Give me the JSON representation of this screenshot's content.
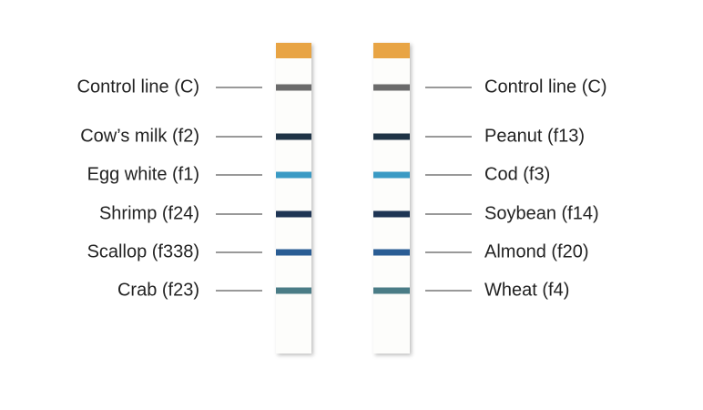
{
  "strips": [
    {
      "labels": [
        "Control line (C)",
        "Cow’s milk (f2)",
        "Egg white (f1)",
        "Shrimp (f24)",
        "Scallop (f338)",
        "Crab (f23)"
      ]
    },
    {
      "labels": [
        "Control line (C)",
        "Peanut (f13)",
        "Cod (f3)",
        "Soybean (f14)",
        "Almond (f20)",
        "Wheat (f4)"
      ]
    }
  ]
}
